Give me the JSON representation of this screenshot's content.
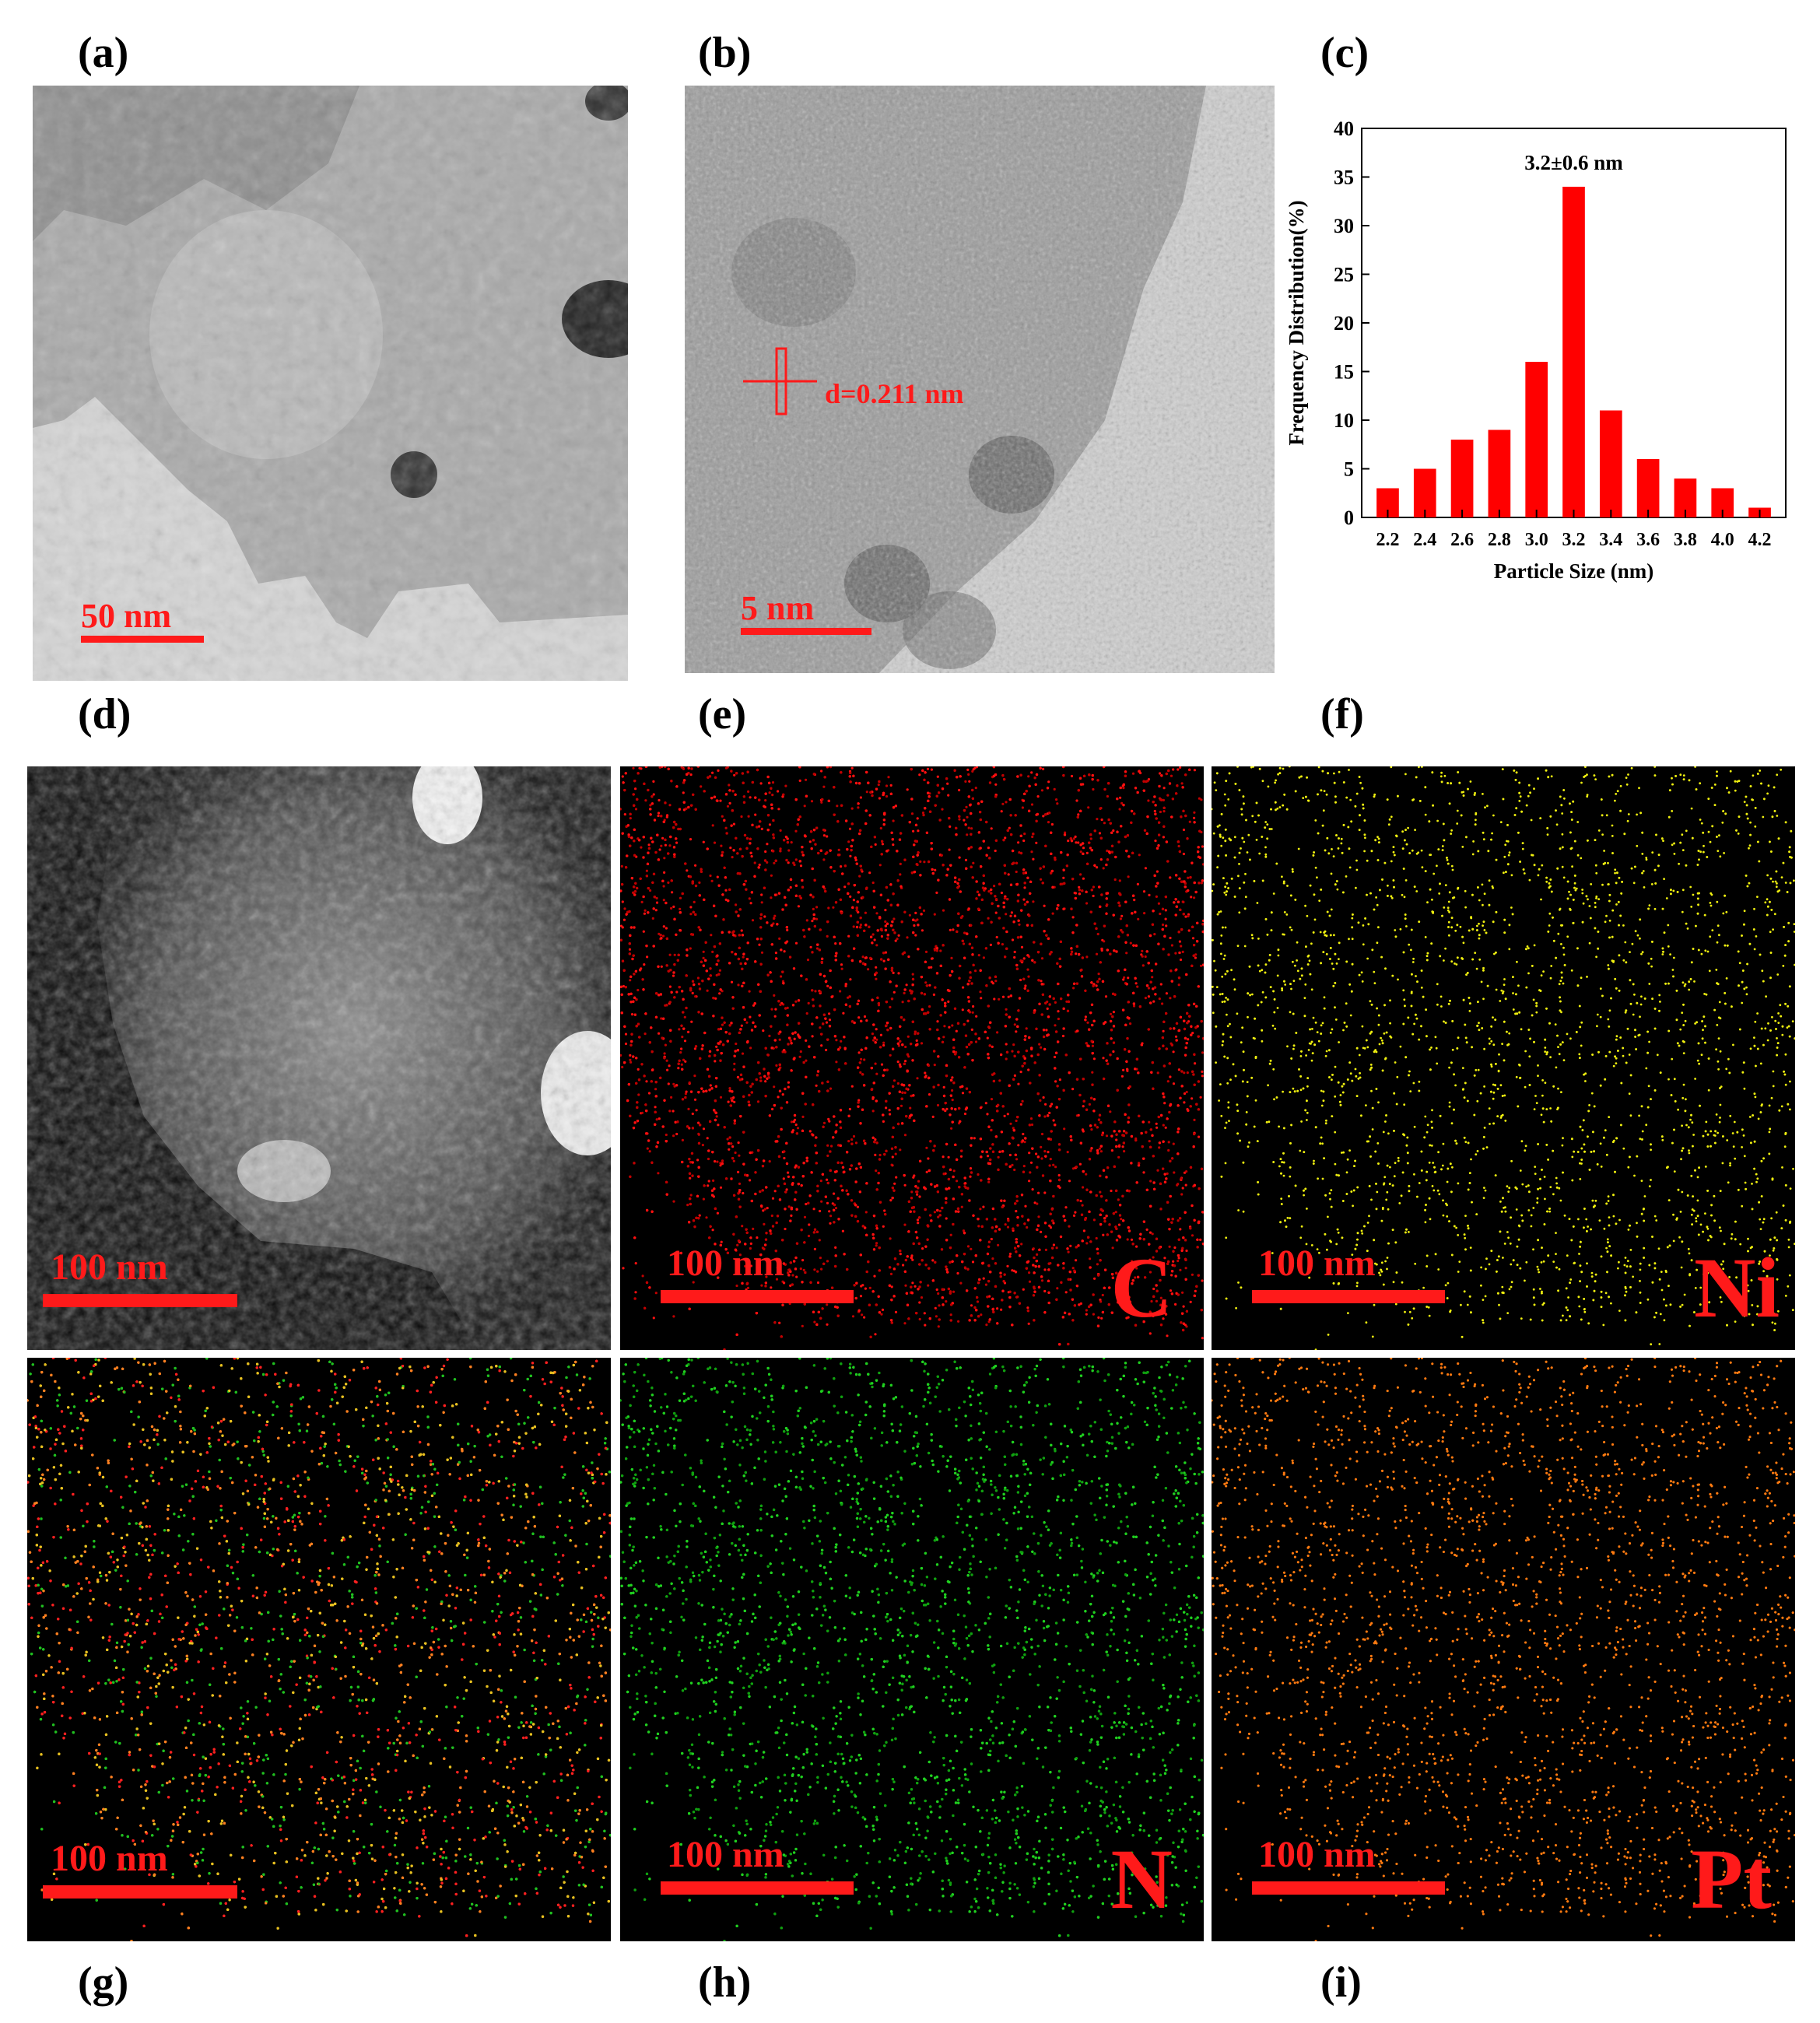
{
  "panel_labels": [
    "(a)",
    "(b)",
    "(c)",
    "(d)",
    "(e)",
    "(f)",
    "(g)",
    "(h)",
    "(i)"
  ],
  "tem_a": {
    "scale": "50 nm"
  },
  "hrtem_b": {
    "scale": "5 nm",
    "lattice": "d=0.211 nm"
  },
  "maps": {
    "d": {
      "scale": "100 nm",
      "element": "",
      "color": "#ffffff"
    },
    "e": {
      "scale": "100 nm",
      "element": "C",
      "color": "#ff1010"
    },
    "f": {
      "scale": "100 nm",
      "element": "Ni",
      "color": "#f0f010"
    },
    "g": {
      "scale": "100 nm",
      "element": "",
      "color": "#e0b020"
    },
    "h": {
      "scale": "100 nm",
      "element": "N",
      "color": "#20d020"
    },
    "i": {
      "scale": "100 nm",
      "element": "Pt",
      "color": "#ff7a10"
    }
  },
  "chart_data": {
    "type": "bar",
    "categories": [
      "2.2",
      "2.4",
      "2.6",
      "2.8",
      "3.0",
      "3.2",
      "3.4",
      "3.6",
      "3.8",
      "4.0",
      "4.2"
    ],
    "values": [
      3,
      5,
      8,
      9,
      16,
      34,
      11,
      6,
      4,
      3,
      1
    ],
    "xlabel": "Particle Size (nm)",
    "ylabel": "Frequency Distribution(%)",
    "ylim": [
      0,
      40
    ],
    "yticks": [
      0,
      5,
      10,
      15,
      20,
      25,
      30,
      35,
      40
    ],
    "annotation": "3.2±0.6 nm",
    "bar_color": "#ff0000",
    "grid": false
  }
}
